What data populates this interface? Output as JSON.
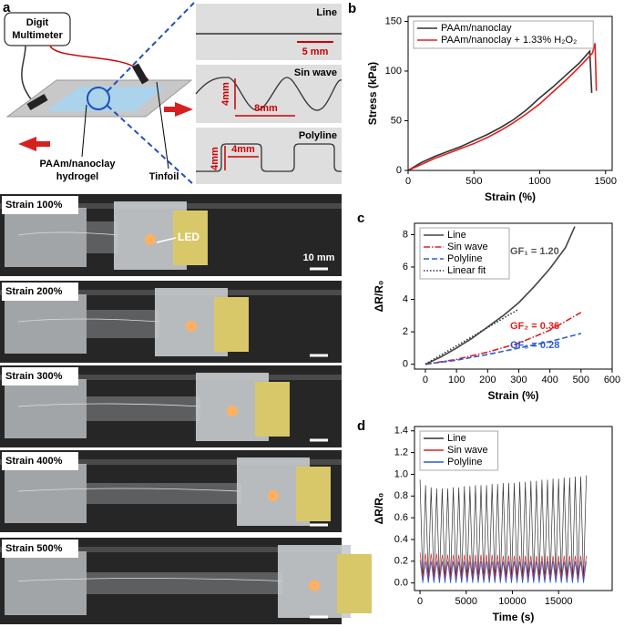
{
  "panel_a": {
    "label": "a",
    "multimeter": [
      "Digit",
      "Multimeter"
    ],
    "hydrogel": [
      "PAAm/nanoclay",
      "hydrogel"
    ],
    "tinfoil": "Tinfoil",
    "insets": [
      {
        "title": "Line",
        "scale": "5 mm"
      },
      {
        "title": "Sin wave",
        "height": "4mm",
        "period": "8mm"
      },
      {
        "title": "Polyline",
        "height": "4mm",
        "width": "4mm"
      }
    ],
    "photos": [
      {
        "label": "Strain 100%"
      },
      {
        "label": "Strain 200%"
      },
      {
        "label": "Strain 300%"
      },
      {
        "label": "Strain 400%"
      },
      {
        "label": "Strain 500%"
      }
    ],
    "led": "LED",
    "scale_bar": "10 mm"
  },
  "chart_data": [
    {
      "panel_label": "b",
      "type": "line",
      "xlabel": "Strain (%)",
      "ylabel": "Stress (kPa)",
      "xlim": [
        0,
        1550
      ],
      "xticks": [
        0,
        500,
        1000,
        1500
      ],
      "ylim": [
        0,
        155
      ],
      "yticks": [
        0,
        50,
        100,
        150
      ],
      "legend": "upper left",
      "legend_box": true,
      "grid": false,
      "series": [
        {
          "name": "PAAm/nanoclay",
          "color": "#333333",
          "linestyle": "solid",
          "x": [
            0,
            100,
            200,
            300,
            400,
            500,
            600,
            700,
            800,
            900,
            1000,
            1100,
            1200,
            1300,
            1380,
            1395
          ],
          "values": [
            0,
            8,
            14,
            19,
            24,
            30,
            36,
            43,
            51,
            61,
            73,
            84,
            96,
            108,
            120,
            78
          ]
        },
        {
          "name": "PAAm/nanoclay + 1.33% H₂O₂",
          "color": "#e02020",
          "linestyle": "solid",
          "x": [
            0,
            100,
            200,
            300,
            400,
            500,
            600,
            700,
            800,
            900,
            1000,
            1100,
            1200,
            1300,
            1400,
            1420,
            1430
          ],
          "values": [
            0,
            6,
            12,
            17,
            22,
            27,
            33,
            40,
            48,
            57,
            67,
            79,
            91,
            104,
            118,
            128,
            80
          ]
        }
      ]
    },
    {
      "panel_label": "c",
      "type": "line",
      "xlabel": "Strain (%)",
      "ylabel": "ΔR/R₀",
      "xlim": [
        -35,
        600
      ],
      "xticks": [
        0,
        100,
        200,
        300,
        400,
        500,
        600
      ],
      "ylim": [
        -0.3,
        8.7
      ],
      "yticks": [
        0,
        2,
        4,
        6,
        8
      ],
      "legend": "upper left",
      "legend_box": true,
      "grid": false,
      "series": [
        {
          "name": "Line",
          "color": "#444444",
          "linestyle": "solid",
          "x": [
            0,
            50,
            100,
            150,
            200,
            250,
            300,
            350,
            400,
            450,
            480
          ],
          "values": [
            0,
            0.45,
            1.0,
            1.6,
            2.3,
            3.0,
            3.8,
            4.8,
            5.9,
            7.2,
            8.5
          ]
        },
        {
          "name": "Sin wave",
          "color": "#e02020",
          "linestyle": "dashdot",
          "x": [
            0,
            100,
            200,
            300,
            400,
            500
          ],
          "values": [
            0,
            0.3,
            0.75,
            1.3,
            2.1,
            3.2
          ]
        },
        {
          "name": "Polyline",
          "color": "#2a5bd7",
          "linestyle": "dashed",
          "x": [
            0,
            100,
            200,
            300,
            400,
            500
          ],
          "values": [
            0,
            0.25,
            0.6,
            1.0,
            1.4,
            1.9
          ]
        },
        {
          "name": "Linear fit",
          "color": "#333333",
          "linestyle": "dotted",
          "x": [
            0,
            300
          ],
          "values": [
            0,
            3.4
          ]
        }
      ],
      "annotations": [
        {
          "text": "GF₁ = 1.20",
          "color": "#555555"
        },
        {
          "text": "GF₂ = 0.36",
          "color": "#e02020"
        },
        {
          "text": "GF₃ = 0.28",
          "color": "#2a5bd7"
        }
      ]
    },
    {
      "panel_label": "d",
      "type": "line",
      "xlabel": "Time (s)",
      "ylabel": "ΔR/R₀",
      "xlim": [
        -600,
        20800
      ],
      "xticks": [
        0,
        5000,
        10000,
        15000
      ],
      "ylim": [
        -0.07,
        1.44
      ],
      "yticks": [
        {
          "value": 0,
          "label": "0.0"
        },
        0.2,
        0.4,
        0.6,
        0.8,
        {
          "value": 1,
          "label": "1.0"
        },
        1.2,
        1.4
      ],
      "legend": "upper left",
      "legend_box": true,
      "grid": false,
      "thin": true,
      "x": [
        0,
        300,
        600,
        900,
        1200,
        1500,
        1800,
        2100,
        2400,
        2700,
        3000,
        3300,
        3600,
        3900,
        4200,
        4500,
        4800,
        5100,
        5400,
        5700,
        6000,
        6300,
        6600,
        6900,
        7200,
        7500,
        7800,
        8100,
        8400,
        8700,
        9000,
        9300,
        9600,
        9900,
        10200,
        10500,
        10800,
        11100,
        11400,
        11700,
        12000,
        12300,
        12600,
        12900,
        13200,
        13500,
        13800,
        14100,
        14400,
        14700,
        15000,
        15300,
        15600,
        15900,
        16200,
        16500,
        16800,
        17100,
        17400,
        17700,
        18000
      ],
      "series": [
        {
          "name": "Line",
          "color": "#333333",
          "linestyle": "solid",
          "values": [
            0.95,
            0.01,
            0.9,
            0.01,
            0.88,
            0.01,
            0.87,
            0.01,
            0.87,
            0.01,
            0.87,
            0.01,
            0.88,
            0.01,
            0.88,
            0.01,
            0.89,
            0.01,
            0.89,
            0.01,
            0.9,
            0.01,
            0.9,
            0.01,
            0.9,
            0.01,
            0.91,
            0.01,
            0.91,
            0.01,
            0.92,
            0.01,
            0.92,
            0.01,
            0.92,
            0.01,
            0.93,
            0.01,
            0.93,
            0.01,
            0.94,
            0.01,
            0.94,
            0.01,
            0.95,
            0.01,
            0.95,
            0.01,
            0.96,
            0.01,
            0.96,
            0.01,
            0.97,
            0.01,
            0.97,
            0.01,
            0.98,
            0.01,
            0.98,
            0.01,
            0.99
          ]
        },
        {
          "name": "Sin wave",
          "color": "#e02020",
          "linestyle": "solid",
          "values": [
            0.28,
            0.04,
            0.27,
            0.04,
            0.27,
            0.04,
            0.27,
            0.04,
            0.26,
            0.04,
            0.26,
            0.04,
            0.26,
            0.04,
            0.26,
            0.04,
            0.26,
            0.04,
            0.26,
            0.04,
            0.26,
            0.04,
            0.26,
            0.04,
            0.26,
            0.04,
            0.26,
            0.04,
            0.26,
            0.04,
            0.25,
            0.04,
            0.25,
            0.04,
            0.25,
            0.04,
            0.25,
            0.04,
            0.25,
            0.04,
            0.25,
            0.04,
            0.25,
            0.04,
            0.25,
            0.04,
            0.25,
            0.04,
            0.25,
            0.04,
            0.25,
            0.04,
            0.25,
            0.04,
            0.25,
            0.04,
            0.25,
            0.04,
            0.25,
            0.04,
            0.25
          ]
        },
        {
          "name": "Polyline",
          "color": "#2a5bd7",
          "linestyle": "solid",
          "values": [
            0.21,
            0.0,
            0.2,
            0.0,
            0.2,
            0.0,
            0.2,
            0.0,
            0.2,
            0.0,
            0.2,
            0.0,
            0.2,
            0.0,
            0.2,
            0.0,
            0.2,
            0.0,
            0.2,
            0.0,
            0.2,
            0.0,
            0.2,
            0.0,
            0.2,
            0.0,
            0.2,
            0.0,
            0.2,
            0.0,
            0.2,
            0.0,
            0.2,
            0.0,
            0.2,
            0.0,
            0.2,
            0.0,
            0.2,
            0.0,
            0.2,
            0.0,
            0.2,
            0.0,
            0.2,
            0.0,
            0.2,
            0.0,
            0.2,
            0.0,
            0.2,
            0.0,
            0.2,
            0.0,
            0.2,
            0.0,
            0.2,
            0.0,
            0.2,
            0.0,
            0.2
          ]
        }
      ]
    }
  ]
}
